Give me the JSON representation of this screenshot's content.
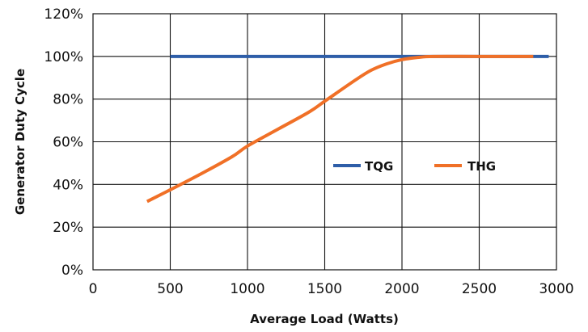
{
  "chart_data": {
    "type": "line",
    "title": "",
    "xlabel": "Average Load (Watts)",
    "ylabel": "Generator Duty Cycle",
    "xlim": [
      0,
      3000
    ],
    "ylim": [
      0,
      120
    ],
    "grid": true,
    "legend_position": "center-right",
    "x_ticks": [
      0,
      500,
      1000,
      1500,
      2000,
      2500,
      3000
    ],
    "y_ticks": [
      0,
      20,
      40,
      60,
      80,
      100,
      120
    ],
    "x_tick_labels": [
      "0",
      "500",
      "1000",
      "1500",
      "2000",
      "2500",
      "3000"
    ],
    "y_tick_labels": [
      "0%",
      "20%",
      "40%",
      "60%",
      "80%",
      "100%",
      "120%"
    ],
    "series": [
      {
        "name": "TQG",
        "color": "#2e5ea8",
        "x": [
          500,
          2950
        ],
        "y": [
          100,
          100
        ]
      },
      {
        "name": "THG",
        "color": "#f07027",
        "x": [
          350,
          500,
          700,
          900,
          1000,
          1200,
          1400,
          1500,
          1700,
          1800,
          1900,
          2000,
          2100,
          2200,
          2500,
          2850
        ],
        "y": [
          32,
          37.5,
          45,
          53,
          58,
          66,
          74,
          79,
          89,
          93.5,
          96.5,
          98.5,
          99.5,
          100,
          100,
          100
        ]
      }
    ]
  }
}
